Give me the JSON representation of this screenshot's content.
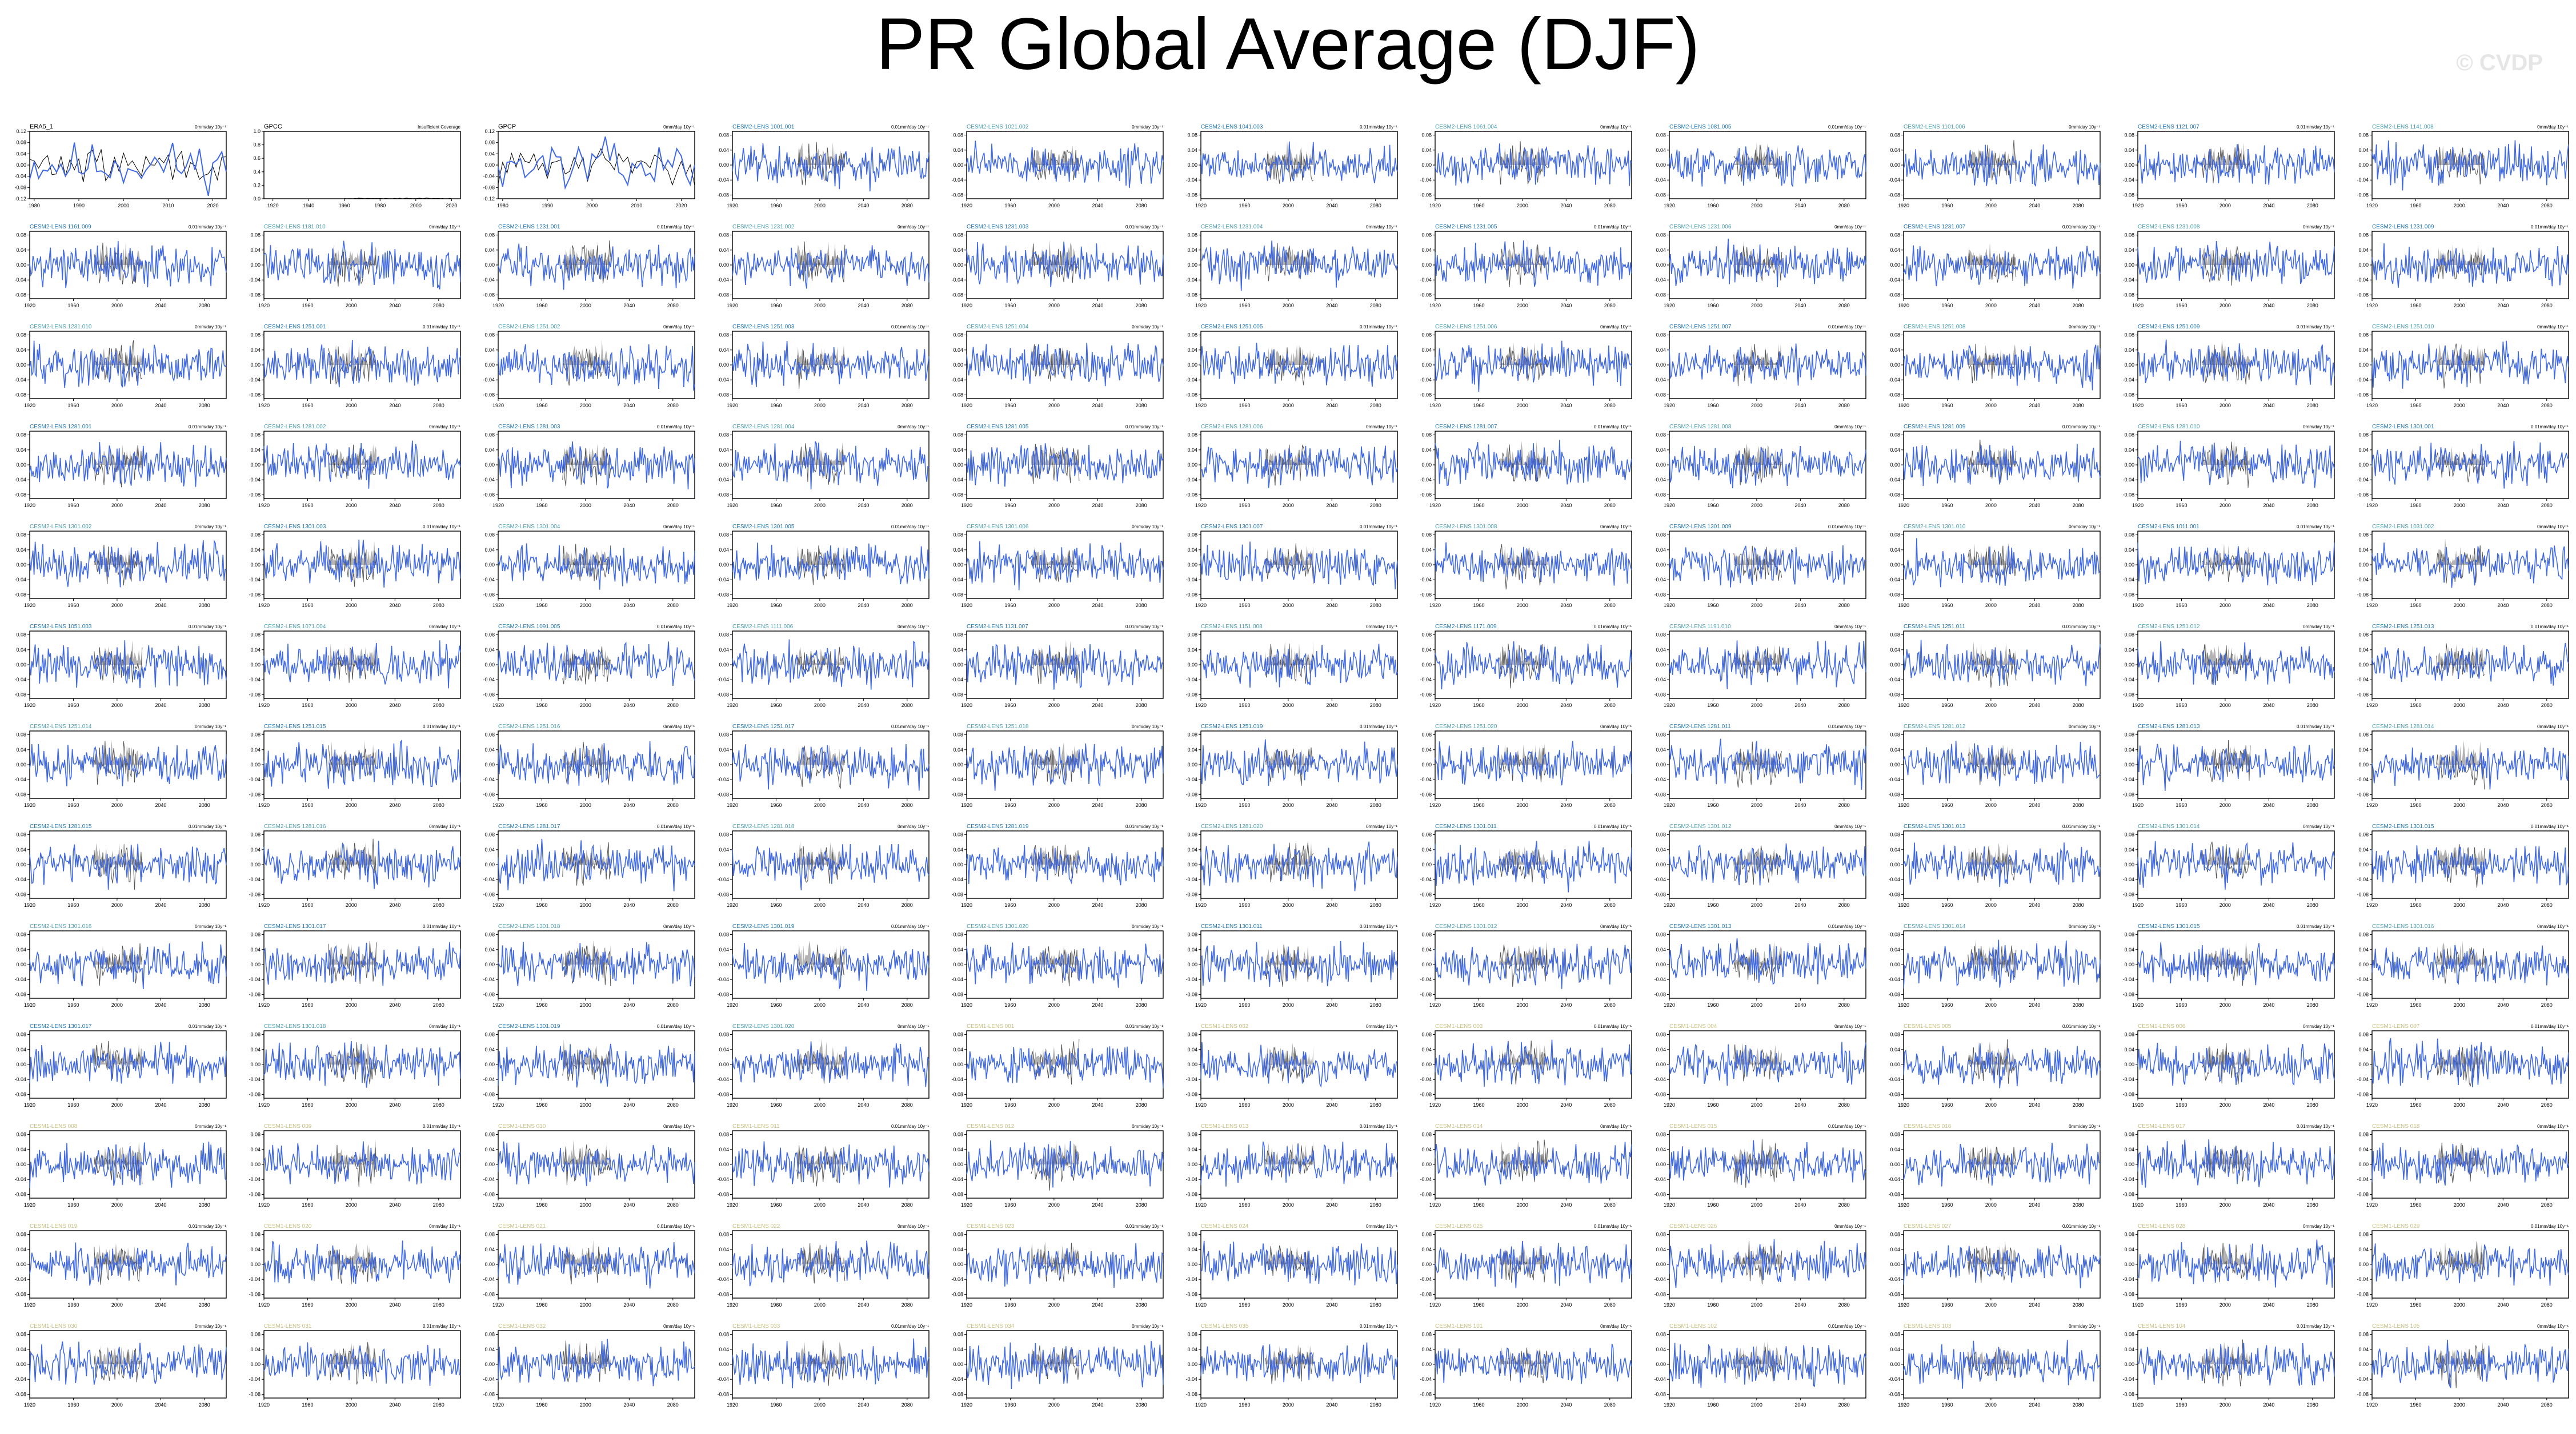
{
  "title": "PR Global Average (DJF)",
  "watermark": "© CVDP",
  "colors": {
    "model_line": "#4169e1",
    "obs_line": "#000000",
    "obs_shading": "#a0a0a0",
    "cesm2_label": "#1f77b4",
    "cesm2_label_b": "#4a9fb0",
    "cesm1_label": "#c8c080"
  },
  "obs_panels": [
    {
      "name": "ERA5_1",
      "units": "0mm/day 10y⁻¹",
      "note": ""
    },
    {
      "name": "GPCC",
      "units": "",
      "note": "Insufficient Coverage"
    },
    {
      "name": "GPCP",
      "units": "0mm/day 10y⁻¹",
      "note": ""
    }
  ],
  "model_labels": [
    "CESM2-LENS 1001.001",
    "CESM2-LENS 1021.002",
    "CESM2-LENS 1041.003",
    "CESM2-LENS 1061.004",
    "CESM2-LENS 1081.005",
    "CESM2-LENS 1101.006",
    "CESM2-LENS 1121.007",
    "CESM2-LENS 1141.008",
    "CESM2-LENS 1161.009",
    "CESM2-LENS 1181.010",
    "CESM2-LENS 1231.001",
    "CESM2-LENS 1231.002",
    "CESM2-LENS 1231.003",
    "CESM2-LENS 1231.004",
    "CESM2-LENS 1231.005",
    "CESM2-LENS 1231.006",
    "CESM2-LENS 1231.007",
    "CESM2-LENS 1231.008",
    "CESM2-LENS 1231.009",
    "CESM2-LENS 1231.010",
    "CESM2-LENS 1251.001",
    "CESM2-LENS 1251.002",
    "CESM2-LENS 1251.003",
    "CESM2-LENS 1251.004",
    "CESM2-LENS 1251.005",
    "CESM2-LENS 1251.006",
    "CESM2-LENS 1251.007",
    "CESM2-LENS 1251.008",
    "CESM2-LENS 1251.009",
    "CESM2-LENS 1251.010",
    "CESM2-LENS 1281.001",
    "CESM2-LENS 1281.002",
    "CESM2-LENS 1281.003",
    "CESM2-LENS 1281.004",
    "CESM2-LENS 1281.005",
    "CESM2-LENS 1281.006",
    "CESM2-LENS 1281.007",
    "CESM2-LENS 1281.008",
    "CESM2-LENS 1281.009",
    "CESM2-LENS 1281.010",
    "CESM2-LENS 1301.001",
    "CESM2-LENS 1301.002",
    "CESM2-LENS 1301.003",
    "CESM2-LENS 1301.004",
    "CESM2-LENS 1301.005",
    "CESM2-LENS 1301.006",
    "CESM2-LENS 1301.007",
    "CESM2-LENS 1301.008",
    "CESM2-LENS 1301.009",
    "CESM2-LENS 1301.010",
    "CESM2-LENS 1011.001",
    "CESM2-LENS 1031.002",
    "CESM2-LENS 1051.003",
    "CESM2-LENS 1071.004",
    "CESM2-LENS 1091.005",
    "CESM2-LENS 1111.006",
    "CESM2-LENS 1131.007",
    "CESM2-LENS 1151.008",
    "CESM2-LENS 1171.009",
    "CESM2-LENS 1191.010",
    "CESM2-LENS 1251.011",
    "CESM2-LENS 1251.012",
    "CESM2-LENS 1251.013",
    "CESM2-LENS 1251.014",
    "CESM2-LENS 1251.015",
    "CESM2-LENS 1251.016",
    "CESM2-LENS 1251.017",
    "CESM2-LENS 1251.018",
    "CESM2-LENS 1251.019",
    "CESM2-LENS 1251.020",
    "CESM2-LENS 1281.011",
    "CESM2-LENS 1281.012",
    "CESM2-LENS 1281.013",
    "CESM2-LENS 1281.014",
    "CESM2-LENS 1281.015",
    "CESM2-LENS 1281.016",
    "CESM2-LENS 1281.017",
    "CESM2-LENS 1281.018",
    "CESM2-LENS 1281.019",
    "CESM2-LENS 1281.020",
    "CESM2-LENS 1301.011",
    "CESM2-LENS 1301.012",
    "CESM2-LENS 1301.013",
    "CESM2-LENS 1301.014",
    "CESM2-LENS 1301.015",
    "CESM2-LENS 1301.016",
    "CESM2-LENS 1301.017",
    "CESM2-LENS 1301.018",
    "CESM2-LENS 1301.019",
    "CESM2-LENS 1301.020",
    "CESM2-LENS 1301.011",
    "CESM2-LENS 1301.012",
    "CESM2-LENS 1301.013",
    "CESM2-LENS 1301.014",
    "CESM2-LENS 1301.015",
    "CESM2-LENS 1301.016",
    "CESM2-LENS 1301.017",
    "CESM2-LENS 1301.018",
    "CESM2-LENS 1301.019",
    "CESM2-LENS 1301.020",
    "CESM1-LENS 001",
    "CESM1-LENS 002",
    "CESM1-LENS 003",
    "CESM1-LENS 004",
    "CESM1-LENS 005",
    "CESM1-LENS 006",
    "CESM1-LENS 007",
    "CESM1-LENS 008",
    "CESM1-LENS 009",
    "CESM1-LENS 010",
    "CESM1-LENS 011",
    "CESM1-LENS 012",
    "CESM1-LENS 013",
    "CESM1-LENS 014",
    "CESM1-LENS 015",
    "CESM1-LENS 016",
    "CESM1-LENS 017",
    "CESM1-LENS 018",
    "CESM1-LENS 019",
    "CESM1-LENS 020",
    "CESM1-LENS 021",
    "CESM1-LENS 022",
    "CESM1-LENS 023",
    "CESM1-LENS 024",
    "CESM1-LENS 025",
    "CESM1-LENS 026",
    "CESM1-LENS 027",
    "CESM1-LENS 028",
    "CESM1-LENS 029",
    "CESM1-LENS 030",
    "CESM1-LENS 031",
    "CESM1-LENS 032",
    "CESM1-LENS 033",
    "CESM1-LENS 034",
    "CESM1-LENS 035",
    "CESM1-LENS 101",
    "CESM1-LENS 102",
    "CESM1-LENS 103",
    "CESM1-LENS 104",
    "CESM1-LENS 105"
  ],
  "model_units": [
    "0mm/day 10y⁻¹",
    "0.01mm/day 10y⁻¹"
  ],
  "chart_data": {
    "type": "line",
    "layout": "small-multiples grid, 11 columns x 13 rows",
    "obs_xticks": [
      "1980",
      "1990",
      "2000",
      "2010",
      "2020"
    ],
    "obs_yticks": [
      "0.12",
      "0.08",
      "0.04",
      "0.00",
      "-0.04",
      "-0.08",
      "-0.12"
    ],
    "obs_ylim": [
      -0.12,
      0.12
    ],
    "gpcc_ylim": [
      0.0,
      1.0
    ],
    "gpcc_yticks": [
      "1.0",
      "0.8",
      "0.6",
      "0.4",
      "0.2",
      "0.0"
    ],
    "gpcc_xticks": [
      "1920",
      "1940",
      "1960",
      "1980",
      "2000",
      "2020"
    ],
    "model_xticks": [
      "1920",
      "1960",
      "2000",
      "2040",
      "2080"
    ],
    "model_yticks": [
      "0.08",
      "0.04",
      "0.00",
      "-0.04",
      "-0.08"
    ],
    "model_ylim": [
      -0.09,
      0.09
    ],
    "model_xlim": [
      1920,
      2100
    ],
    "obs_xlim": [
      1979,
      2023
    ],
    "series": [
      {
        "name": "ERA5_1",
        "role": "observation"
      },
      {
        "name": "GPCP",
        "role": "observation"
      }
    ]
  }
}
